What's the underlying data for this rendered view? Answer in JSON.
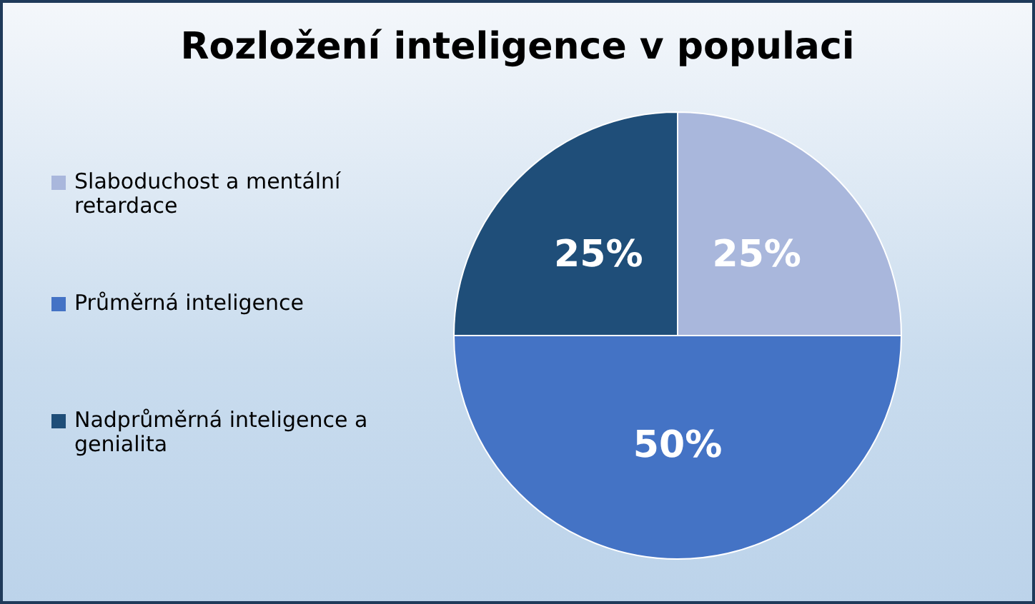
{
  "chart_data": {
    "type": "pie",
    "title": "Rozložení inteligence v populaci",
    "categories": [
      "Slaboduchost a mentální retardace",
      "Průměrná inteligence",
      "Nadprůměrná inteligence a genialita"
    ],
    "values": [
      25,
      50,
      25
    ],
    "colors": [
      "#a9b7dc",
      "#4473c5",
      "#1f4e79"
    ],
    "value_labels": [
      "25%",
      "50%",
      "25%"
    ],
    "legend": "left"
  }
}
